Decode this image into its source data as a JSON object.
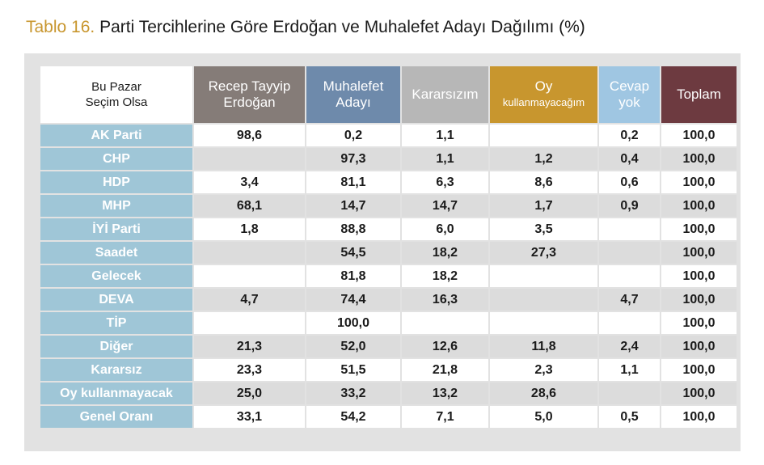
{
  "title": {
    "number": "Tablo 16.",
    "text": "Parti Tercihlerine Göre Erdoğan ve Muhalefet Adayı Dağılımı (%)"
  },
  "header": {
    "corner": [
      "Bu Pazar",
      "Seçim Olsa"
    ],
    "columns": [
      {
        "lines": [
          "Recep Tayyip",
          "Erdoğan"
        ],
        "color": "#857c78"
      },
      {
        "lines": [
          "Muhalefet",
          "Adayı"
        ],
        "color": "#6e8aab"
      },
      {
        "lines": [
          "Kararsızım"
        ],
        "color": "#b7b7b7"
      },
      {
        "lines": [
          "Oy",
          "kullanmayacağım"
        ],
        "color": "#c8962e"
      },
      {
        "lines": [
          "Cevap",
          "yok"
        ],
        "color": "#9fc6e2"
      },
      {
        "lines": [
          "Toplam"
        ],
        "color": "#6d3a40"
      }
    ]
  },
  "rows": [
    {
      "label": "AK Parti",
      "values": [
        "98,6",
        "0,2",
        "1,1",
        "",
        "0,2",
        "100,0"
      ]
    },
    {
      "label": "CHP",
      "values": [
        "",
        "97,3",
        "1,1",
        "1,2",
        "0,4",
        "100,0"
      ]
    },
    {
      "label": "HDP",
      "values": [
        "3,4",
        "81,1",
        "6,3",
        "8,6",
        "0,6",
        "100,0"
      ]
    },
    {
      "label": "MHP",
      "values": [
        "68,1",
        "14,7",
        "14,7",
        "1,7",
        "0,9",
        "100,0"
      ]
    },
    {
      "label": "İYİ Parti",
      "values": [
        "1,8",
        "88,8",
        "6,0",
        "3,5",
        "",
        "100,0"
      ]
    },
    {
      "label": "Saadet",
      "values": [
        "",
        "54,5",
        "18,2",
        "27,3",
        "",
        "100,0"
      ]
    },
    {
      "label": "Gelecek",
      "values": [
        "",
        "81,8",
        "18,2",
        "",
        "",
        "100,0"
      ]
    },
    {
      "label": "DEVA",
      "values": [
        "4,7",
        "74,4",
        "16,3",
        "",
        "4,7",
        "100,0"
      ]
    },
    {
      "label": "TİP",
      "values": [
        "",
        "100,0",
        "",
        "",
        "",
        "100,0"
      ]
    },
    {
      "label": "Diğer",
      "values": [
        "21,3",
        "52,0",
        "12,6",
        "11,8",
        "2,4",
        "100,0"
      ]
    },
    {
      "label": "Kararsız",
      "values": [
        "23,3",
        "51,5",
        "21,8",
        "2,3",
        "1,1",
        "100,0"
      ]
    },
    {
      "label": "Oy kullanmayacak",
      "values": [
        "25,0",
        "33,2",
        "13,2",
        "28,6",
        "",
        "100,0"
      ]
    },
    {
      "label": "Genel Oranı",
      "values": [
        "33,1",
        "54,2",
        "7,1",
        "5,0",
        "0,5",
        "100,0"
      ]
    }
  ]
}
